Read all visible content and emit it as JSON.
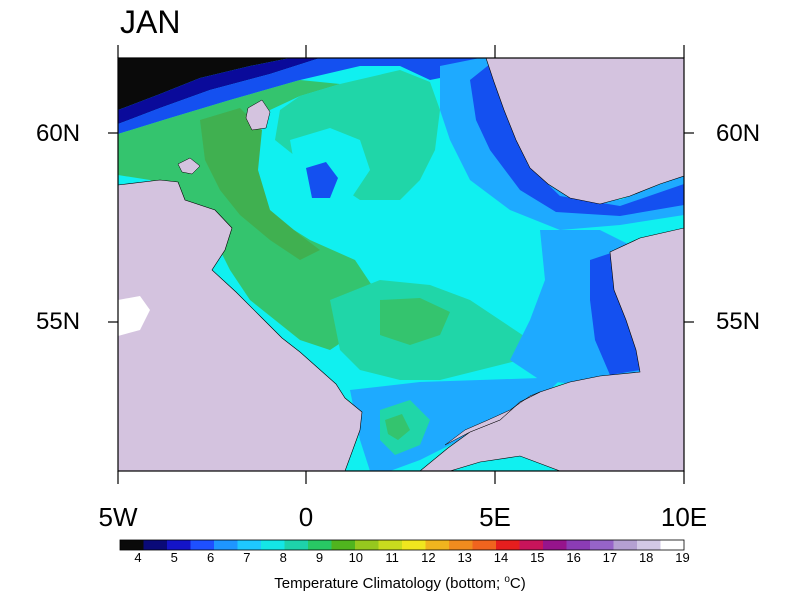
{
  "title": "JAN",
  "lat_labels": [
    "60N",
    "55N"
  ],
  "lon_labels": [
    "5W",
    "0",
    "5E",
    "10E"
  ],
  "colorbar": {
    "ticks": [
      "4",
      "5",
      "6",
      "7",
      "8",
      "9",
      "10",
      "11",
      "12",
      "13",
      "14",
      "15",
      "16",
      "17",
      "18",
      "19"
    ],
    "colors": [
      "#0a0a0a",
      "#0a0a78",
      "#1414c8",
      "#1e50ff",
      "#1e96ff",
      "#1ec8ff",
      "#14e6e6",
      "#1ed2aa",
      "#28c864",
      "#50b41e",
      "#96c81e",
      "#c8dc1e",
      "#f0e61e",
      "#f0b41e",
      "#f08c1e",
      "#f0641e",
      "#e61e1e",
      "#c8145a",
      "#96148c",
      "#8c3cb4",
      "#9664c8",
      "#b4a0d2",
      "#d2c8e6",
      "#ffffff"
    ],
    "caption_main": "Temperature Climatology (bottom; ",
    "caption_unit_sup": "o",
    "caption_unit": "C)"
  },
  "map": {
    "land_color": "#d4c3df",
    "ocean_colors": {
      "deep_black": "#0a0a0a",
      "dark_blue": "#0a0a9a",
      "blue": "#1450f0",
      "light_blue": "#1eaaff",
      "cyan": "#10f0f0",
      "aqua_green": "#20d6a8",
      "green": "#34c46e",
      "dark_green": "#40b050"
    }
  }
}
